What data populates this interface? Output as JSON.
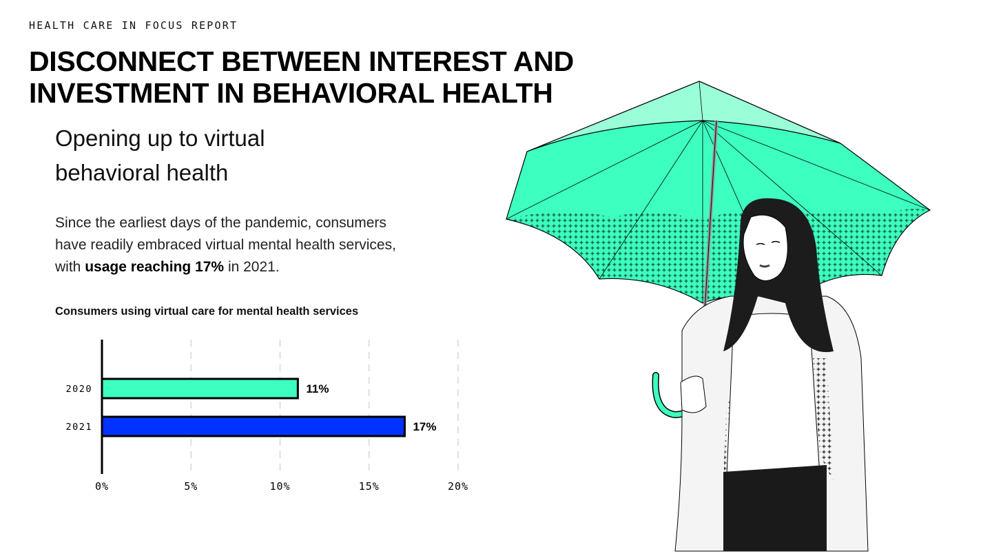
{
  "header": {
    "kicker": "HEALTH CARE IN FOCUS REPORT",
    "title_line1": "DISCONNECT BETWEEN INTEREST AND",
    "title_line2": "INVESTMENT IN BEHAVIORAL HEALTH"
  },
  "section": {
    "subtitle_line1": "Opening up to virtual",
    "subtitle_line2": "behavioral health",
    "body_line1": "Since the earliest days of the pandemic, consumers",
    "body_line2": "have readily embraced virtual mental health services,",
    "body_line3_pre": "with ",
    "body_line3_bold": "usage reaching 17%",
    "body_line3_post": " in 2021."
  },
  "chart_data": {
    "type": "bar",
    "orientation": "horizontal",
    "title": "Consumers using virtual care for mental health services",
    "categories": [
      "2020",
      "2021"
    ],
    "values": [
      11,
      17
    ],
    "value_labels": [
      "11%",
      "17%"
    ],
    "colors": [
      "#3dffc0",
      "#0033ff"
    ],
    "xlim": [
      0,
      20
    ],
    "xticks": [
      0,
      5,
      10,
      15,
      20
    ],
    "xtick_labels": [
      "0%",
      "5%",
      "10%",
      "15%",
      "20%"
    ],
    "grid": true,
    "xlabel": "",
    "ylabel": ""
  },
  "colors": {
    "umbrella": "#3dffc0",
    "umbrella_light": "#9affd9"
  }
}
